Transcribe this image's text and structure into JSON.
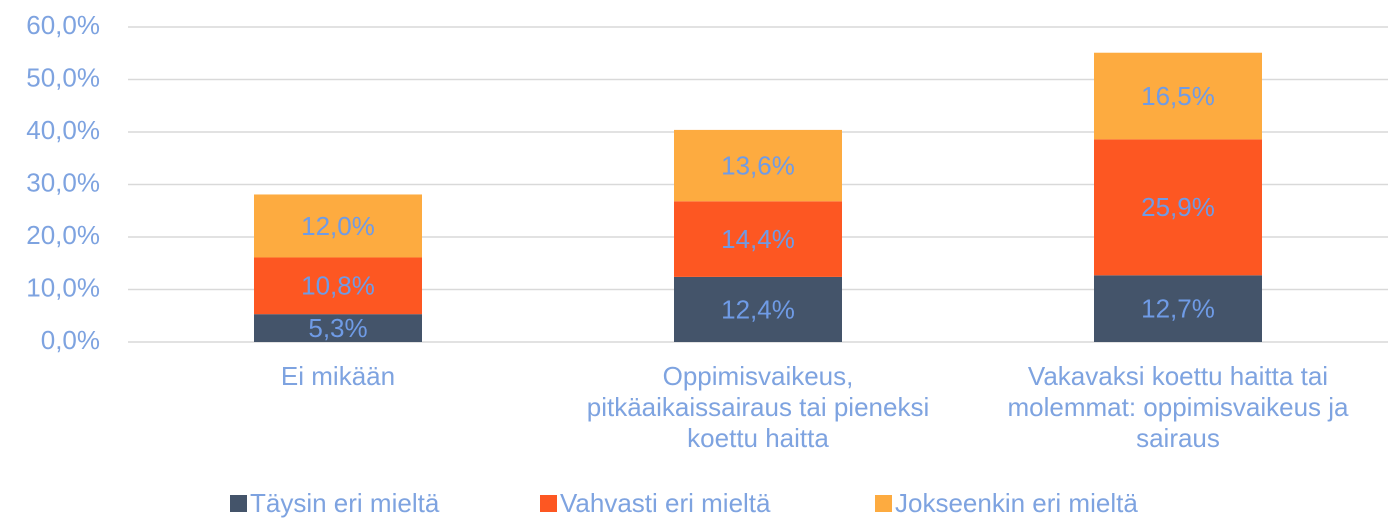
{
  "chart_data": {
    "type": "bar",
    "stacked": true,
    "categories": [
      "Ei mikään",
      "Oppimisvaikeus, pitkäaikaissairaus tai pieneksi koettu haitta",
      "Vakavaksi koettu haitta tai molemmat: oppimisvaikeus ja sairaus"
    ],
    "series": [
      {
        "name": "Täysin eri mieltä",
        "color": "#44546a",
        "values": [
          5.3,
          12.4,
          12.7
        ],
        "value_labels": [
          "5,3%",
          "12,4%",
          "12,7%"
        ]
      },
      {
        "name": "Vahvasti eri mieltä",
        "color": "#fd5722",
        "values": [
          10.8,
          14.4,
          25.9
        ],
        "value_labels": [
          "10,8%",
          "14,4%",
          "25,9%"
        ]
      },
      {
        "name": "Jokseenkin eri mieltä",
        "color": "#fdab40",
        "values": [
          12.0,
          13.6,
          16.5
        ],
        "value_labels": [
          "12,0%",
          "13,6%",
          "16,5%"
        ]
      }
    ],
    "ylim": [
      0,
      60
    ],
    "yticks": [
      {
        "value": 0,
        "label": "0,0%"
      },
      {
        "value": 10,
        "label": "10,0%"
      },
      {
        "value": 20,
        "label": "20,0%"
      },
      {
        "value": 30,
        "label": "30,0%"
      },
      {
        "value": 40,
        "label": "40,0%"
      },
      {
        "value": 50,
        "label": "50,0%"
      },
      {
        "value": 60,
        "label": "60,0%"
      }
    ],
    "grid": true,
    "legend": "bottom"
  }
}
